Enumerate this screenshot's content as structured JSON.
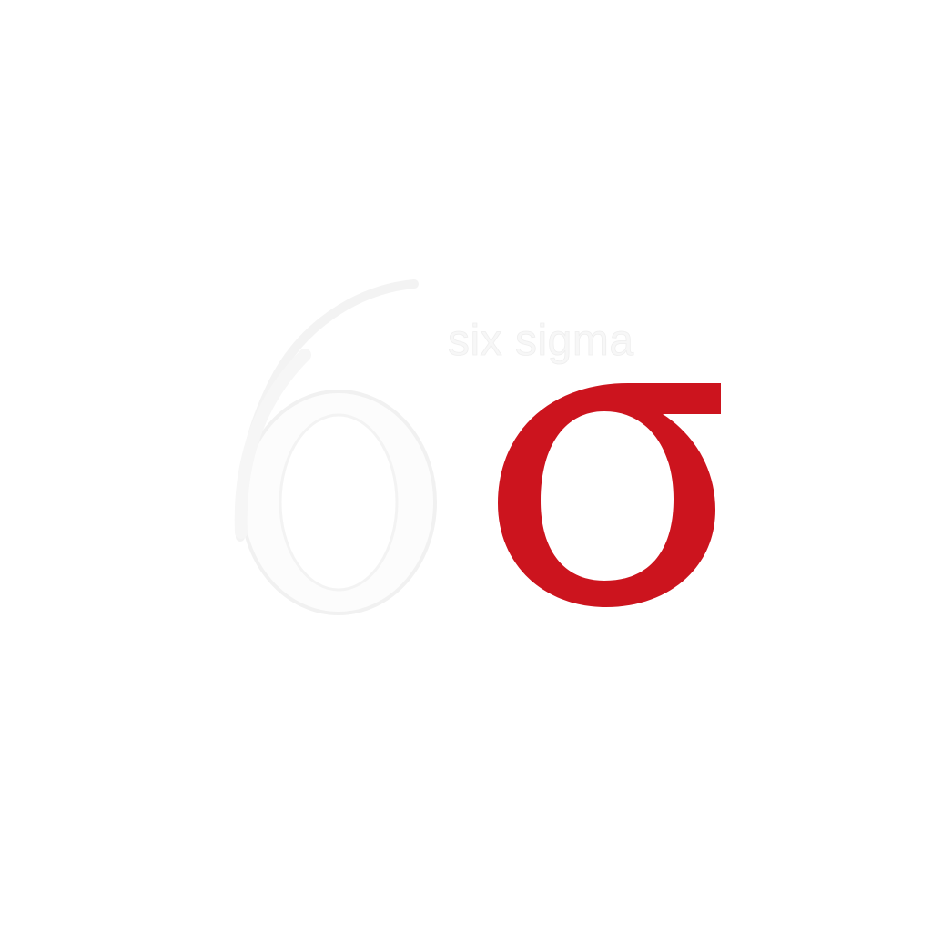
{
  "logo": {
    "wordmark": "six sigma",
    "numeral_glyph": "6",
    "sigma_glyph": "σ",
    "colors": {
      "background": "#ffffff",
      "numeral": "#fcfcfc",
      "numeral_outline": "#f2f2f2",
      "wordmark": "#fbfbfb",
      "sigma": "#cc141e"
    }
  }
}
